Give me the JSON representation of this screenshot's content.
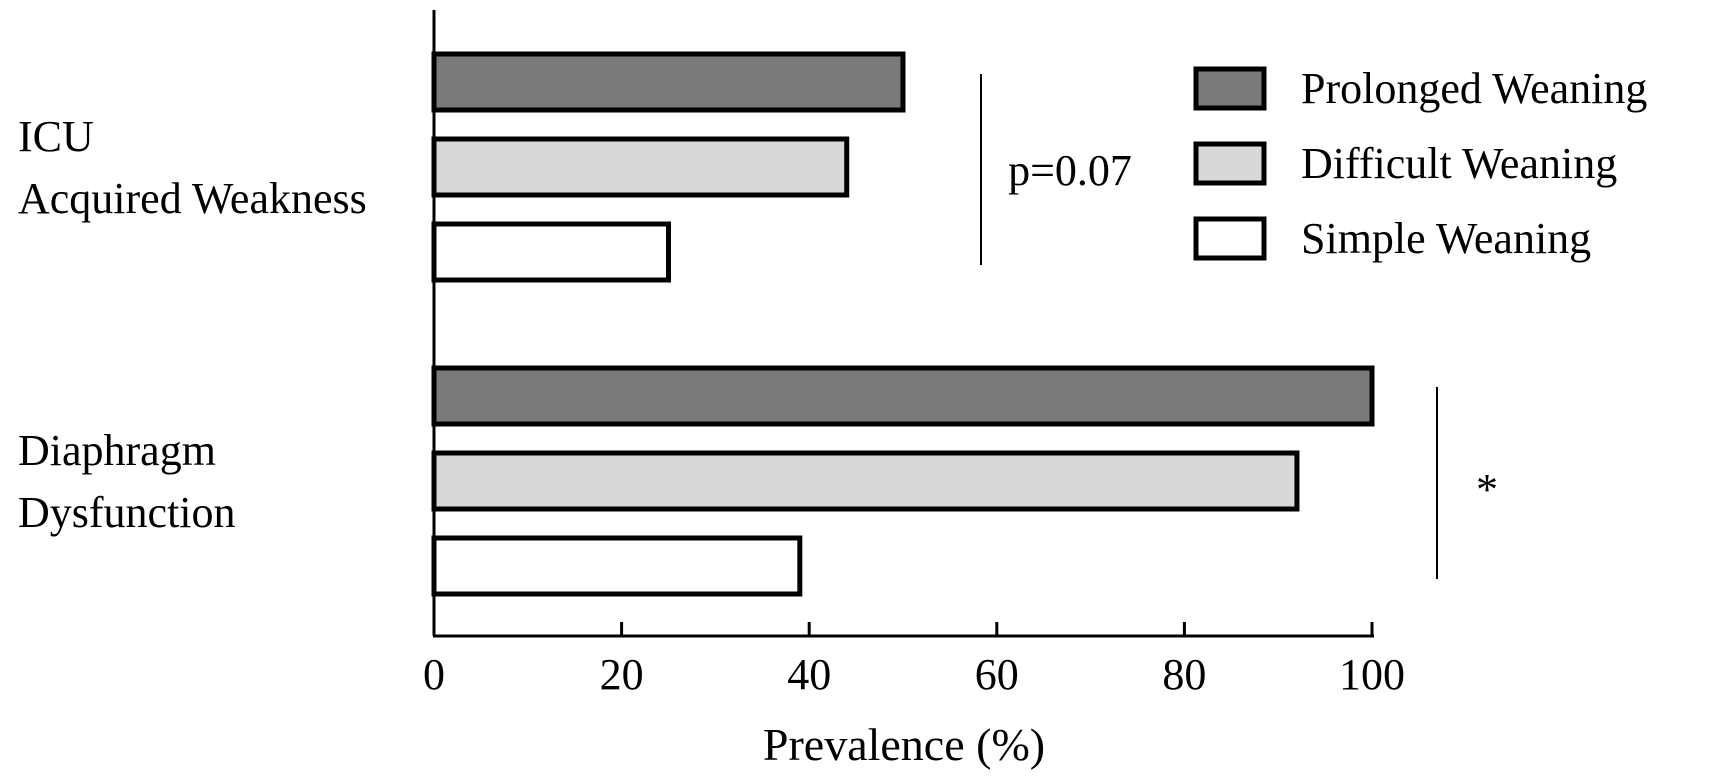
{
  "chart_data": {
    "type": "bar",
    "orientation": "horizontal",
    "categories": [
      {
        "id": "icuaw",
        "lines": [
          "ICU",
          "Acquired Weakness"
        ]
      },
      {
        "id": "dd",
        "lines": [
          "Diaphragm",
          "Dysfunction"
        ]
      }
    ],
    "series": [
      {
        "name": "Prolonged Weaning",
        "color": "#7a7a7a",
        "values": [
          50,
          100
        ]
      },
      {
        "name": "Difficult Weaning",
        "color": "#d8d8d8",
        "values": [
          44,
          92
        ]
      },
      {
        "name": "Simple Weaning",
        "color": "#ffffff",
        "values": [
          25,
          39
        ]
      }
    ],
    "xlabel": "Prevalence (%)",
    "ylabel": "",
    "title": "",
    "xlim": [
      0,
      100
    ],
    "xticks": [
      0,
      20,
      40,
      60,
      80,
      100
    ],
    "grid": false,
    "legend": "top-right",
    "annotations": [
      {
        "category": "icuaw",
        "text": "p=0.07"
      },
      {
        "category": "dd",
        "text": "*"
      }
    ]
  }
}
